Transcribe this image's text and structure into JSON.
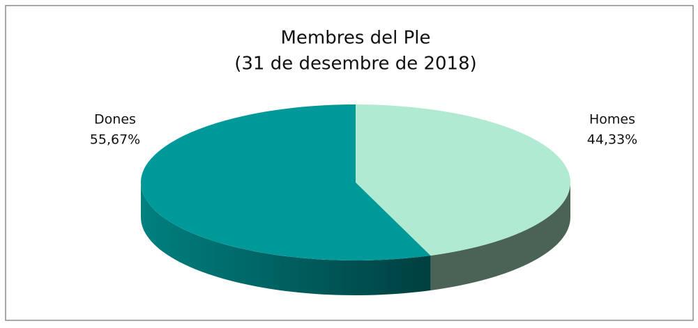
{
  "chart_data": {
    "type": "pie3d",
    "title": "Membres del Ple",
    "subtitle": "(31 de desembre de 2018)",
    "categories": [
      "Homes",
      "Dones"
    ],
    "values": [
      44.33,
      55.67
    ],
    "value_labels": [
      "44,33%",
      "55,67%"
    ],
    "colors": [
      "#b0ead0",
      "#009999"
    ],
    "side_colors": [
      "#4a6354",
      "#006b6b"
    ]
  }
}
